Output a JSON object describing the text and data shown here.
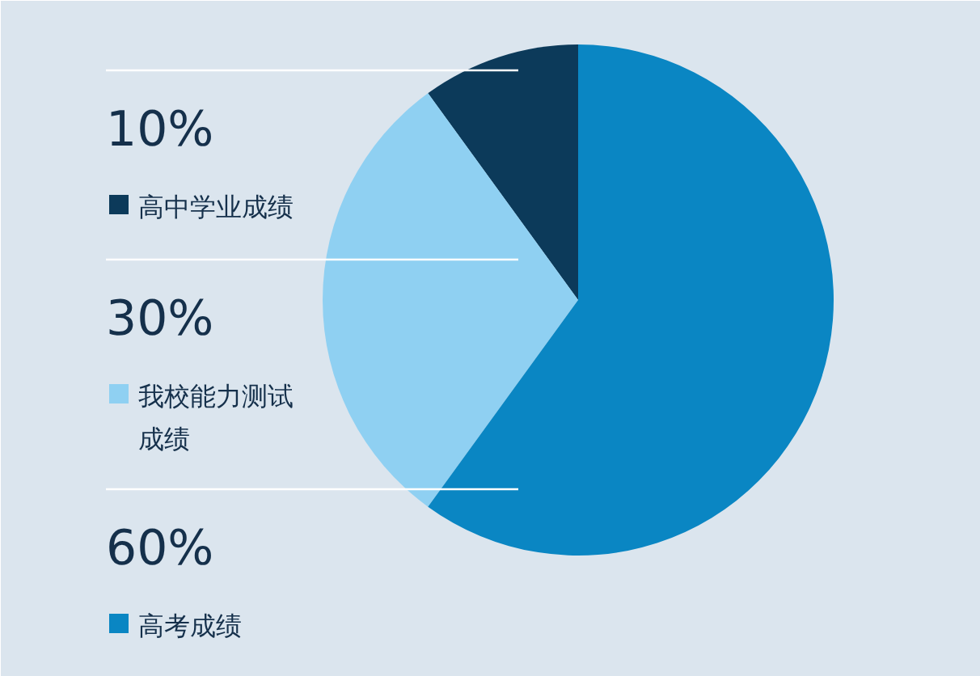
{
  "chart_data": {
    "type": "pie",
    "categories": [
      "高中学业成绩",
      "我校能力测试成绩",
      "高考成绩"
    ],
    "values": [
      10,
      30,
      60
    ],
    "colors": [
      "#0c3a5a",
      "#8fd0f2",
      "#0a86c3"
    ],
    "value_labels": [
      "10%",
      "30%",
      "60%"
    ],
    "legend": "left"
  }
}
